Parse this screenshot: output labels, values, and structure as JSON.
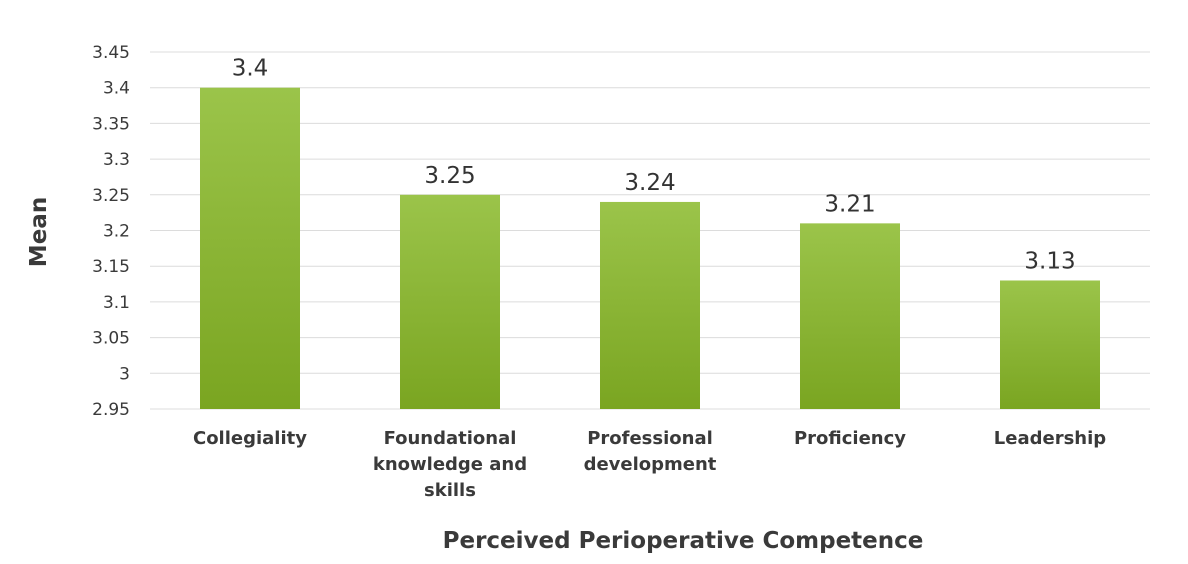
{
  "chart_data": {
    "type": "bar",
    "categories": [
      [
        "Collegiality"
      ],
      [
        "Foundational",
        "knowledge and",
        "skills"
      ],
      [
        "Professional",
        "development"
      ],
      [
        "Proficiency"
      ],
      [
        "Leadership"
      ]
    ],
    "values": [
      3.4,
      3.25,
      3.24,
      3.21,
      3.13
    ],
    "data_labels": [
      "3.4",
      "3.25",
      "3.24",
      "3.21",
      "3.13"
    ],
    "title": "",
    "xlabel": "Perceived Perioperative Competence",
    "ylabel": "Mean",
    "ylim": [
      2.95,
      3.45
    ],
    "yticks": [
      "3.45",
      "3.4",
      "3.35",
      "3.3",
      "3.25",
      "3.2",
      "3.15",
      "3.1",
      "3.05",
      "3",
      "2.95"
    ],
    "grid": true,
    "legend": "none",
    "bar_color_top": "#9bc44a",
    "bar_color_bottom": "#7aa521"
  }
}
